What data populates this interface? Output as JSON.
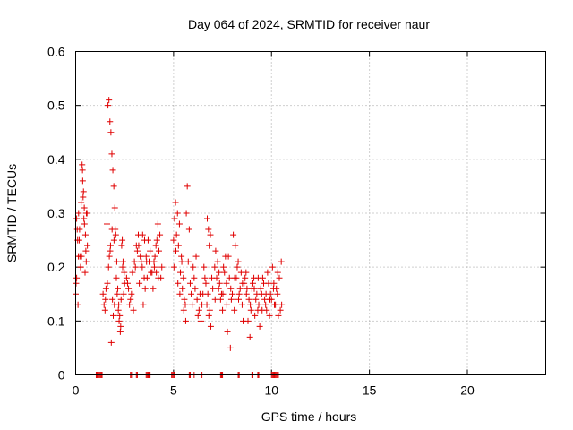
{
  "chart_data": {
    "type": "scatter",
    "title": "Day 064 of 2024, SRMTID for receiver naur",
    "xlabel": "GPS time / hours",
    "ylabel": "SRMTID / TECUs",
    "xlim": [
      0,
      24
    ],
    "ylim": [
      0,
      0.6
    ],
    "x_ticks": [
      0,
      5,
      10,
      15,
      20
    ],
    "x_tick_labels": [
      "0",
      "5",
      "10",
      "15",
      "20"
    ],
    "y_ticks": [
      0,
      0.1,
      0.2,
      0.3,
      0.4,
      0.5,
      0.6
    ],
    "y_tick_labels": [
      "0",
      "0.1",
      "0.2",
      "0.3",
      "0.4",
      "0.5",
      "0.6"
    ],
    "grid": true,
    "marker": "+",
    "color": "#e00000",
    "series": [
      {
        "name": "SRMTID",
        "x": [
          0.0,
          0.05,
          0.1,
          0.15,
          0.2,
          0.25,
          0.3,
          0.35,
          0.4,
          0.45,
          0.5,
          0.55,
          0.6,
          0.05,
          0.12,
          0.18,
          0.22,
          0.28,
          0.33,
          0.38,
          0.42,
          0.48,
          0.52,
          0.58,
          0.02,
          0.08,
          0.14,
          0.26,
          0.36,
          0.44,
          0.54,
          1.4,
          1.45,
          1.5,
          1.55,
          1.6,
          1.65,
          1.7,
          1.75,
          1.8,
          1.85,
          1.9,
          1.95,
          2.0,
          2.05,
          2.1,
          2.15,
          2.2,
          2.25,
          2.3,
          2.35,
          2.4,
          2.45,
          2.5,
          1.72,
          1.78,
          1.82,
          1.88,
          1.92,
          1.98,
          2.02,
          2.08,
          2.12,
          2.18,
          2.22,
          2.28,
          2.32,
          2.38,
          2.42,
          2.48,
          1.52,
          1.62,
          1.68,
          1.76,
          1.86,
          1.96,
          2.6,
          2.7,
          2.8,
          2.9,
          3.0,
          3.1,
          3.2,
          3.3,
          3.4,
          3.5,
          3.6,
          3.7,
          3.8,
          3.9,
          4.0,
          4.1,
          4.2,
          4.3,
          4.4,
          2.65,
          2.75,
          2.85,
          2.95,
          3.05,
          3.15,
          3.25,
          3.35,
          3.45,
          3.55,
          3.65,
          3.75,
          3.85,
          3.95,
          4.05,
          4.15,
          4.25,
          4.35,
          3.22,
          3.32,
          3.42,
          3.52,
          3.62,
          4.02,
          4.12,
          4.22,
          5.0,
          5.1,
          5.2,
          5.3,
          5.4,
          5.5,
          5.6,
          5.7,
          5.8,
          5.9,
          6.0,
          6.1,
          6.2,
          6.3,
          6.4,
          6.5,
          6.6,
          6.7,
          6.8,
          6.9,
          7.0,
          5.05,
          5.15,
          5.25,
          5.35,
          5.45,
          5.55,
          5.65,
          5.75,
          5.85,
          5.95,
          6.05,
          6.15,
          6.25,
          6.35,
          6.45,
          6.55,
          6.65,
          6.75,
          6.85,
          6.95,
          5.02,
          5.12,
          5.22,
          5.32,
          5.42,
          5.52,
          5.62,
          6.72,
          6.78,
          6.82,
          6.88,
          7.1,
          7.2,
          7.3,
          7.4,
          7.5,
          7.6,
          7.7,
          7.8,
          7.9,
          8.0,
          8.1,
          8.2,
          8.3,
          8.4,
          8.5,
          8.6,
          8.7,
          8.8,
          8.9,
          9.0,
          9.1,
          9.2,
          9.3,
          9.4,
          9.5,
          9.6,
          9.7,
          9.8,
          9.9,
          10.0,
          10.1,
          10.2,
          10.3,
          10.4,
          10.5,
          7.15,
          7.25,
          7.35,
          7.45,
          7.55,
          7.65,
          7.75,
          7.85,
          7.95,
          8.05,
          8.15,
          8.25,
          8.35,
          8.45,
          8.55,
          8.65,
          8.75,
          8.85,
          8.95,
          9.05,
          9.15,
          9.25,
          9.35,
          9.45,
          9.55,
          9.65,
          9.75,
          9.85,
          9.95,
          10.05,
          10.15,
          10.25,
          10.35,
          10.45,
          7.12,
          7.32,
          7.52,
          7.72,
          7.92,
          8.12,
          8.32,
          8.52,
          8.72,
          8.92,
          9.12,
          9.32,
          9.52,
          9.72,
          9.92,
          10.12,
          10.32,
          10.52,
          1.05,
          1.1,
          1.15,
          1.2,
          1.25,
          1.3,
          1.35,
          2.8,
          2.85,
          3.1,
          3.15,
          3.6,
          3.65,
          3.7,
          3.75,
          3.8,
          4.9,
          4.95,
          5.0,
          5.05,
          5.8,
          5.85,
          6.05,
          6.4,
          6.45,
          7.4,
          7.45,
          7.5,
          8.3,
          8.35,
          9.0,
          9.05,
          9.3,
          9.35,
          10.0,
          10.05,
          10.1,
          10.15,
          10.2,
          10.25,
          10.3,
          10.35
        ],
        "y": [
          0.15,
          0.29,
          0.25,
          0.3,
          0.27,
          0.2,
          0.22,
          0.38,
          0.34,
          0.28,
          0.26,
          0.3,
          0.24,
          0.18,
          0.13,
          0.25,
          0.22,
          0.32,
          0.39,
          0.33,
          0.29,
          0.19,
          0.23,
          0.3,
          0.17,
          0.27,
          0.22,
          0.2,
          0.36,
          0.31,
          0.21,
          0.15,
          0.13,
          0.12,
          0.16,
          0.28,
          0.5,
          0.51,
          0.47,
          0.45,
          0.41,
          0.38,
          0.35,
          0.31,
          0.26,
          0.21,
          0.16,
          0.13,
          0.11,
          0.09,
          0.24,
          0.2,
          0.15,
          0.17,
          0.22,
          0.24,
          0.06,
          0.14,
          0.11,
          0.13,
          0.27,
          0.18,
          0.15,
          0.12,
          0.1,
          0.08,
          0.14,
          0.25,
          0.21,
          0.19,
          0.14,
          0.17,
          0.2,
          0.23,
          0.27,
          0.25,
          0.18,
          0.16,
          0.14,
          0.19,
          0.21,
          0.24,
          0.26,
          0.22,
          0.2,
          0.18,
          0.22,
          0.25,
          0.23,
          0.19,
          0.21,
          0.24,
          0.28,
          0.26,
          0.2,
          0.17,
          0.13,
          0.15,
          0.12,
          0.2,
          0.23,
          0.17,
          0.21,
          0.13,
          0.16,
          0.18,
          0.21,
          0.19,
          0.16,
          0.22,
          0.25,
          0.23,
          0.18,
          0.24,
          0.22,
          0.26,
          0.25,
          0.21,
          0.2,
          0.19,
          0.18,
          0.25,
          0.32,
          0.3,
          0.28,
          0.22,
          0.18,
          0.13,
          0.35,
          0.27,
          0.15,
          0.2,
          0.16,
          0.14,
          0.12,
          0.1,
          0.15,
          0.18,
          0.13,
          0.11,
          0.09,
          0.16,
          0.29,
          0.26,
          0.24,
          0.19,
          0.16,
          0.14,
          0.3,
          0.21,
          0.17,
          0.13,
          0.18,
          0.22,
          0.11,
          0.15,
          0.13,
          0.2,
          0.17,
          0.15,
          0.12,
          0.18,
          0.2,
          0.23,
          0.17,
          0.15,
          0.21,
          0.12,
          0.1,
          0.29,
          0.27,
          0.24,
          0.26,
          0.2,
          0.18,
          0.16,
          0.14,
          0.12,
          0.19,
          0.17,
          0.22,
          0.05,
          0.15,
          0.12,
          0.18,
          0.21,
          0.16,
          0.13,
          0.17,
          0.19,
          0.1,
          0.07,
          0.16,
          0.18,
          0.14,
          0.12,
          0.09,
          0.15,
          0.17,
          0.13,
          0.19,
          0.11,
          0.14,
          0.16,
          0.13,
          0.15,
          0.18,
          0.21,
          0.23,
          0.21,
          0.17,
          0.15,
          0.2,
          0.22,
          0.08,
          0.18,
          0.14,
          0.26,
          0.24,
          0.2,
          0.15,
          0.19,
          0.1,
          0.18,
          0.16,
          0.14,
          0.12,
          0.17,
          0.11,
          0.15,
          0.13,
          0.16,
          0.18,
          0.14,
          0.12,
          0.17,
          0.15,
          0.2,
          0.13,
          0.16,
          0.11,
          0.12,
          0.14,
          0.19,
          0.15,
          0.13,
          0.16,
          0.18,
          0.14,
          0.17,
          0.15,
          0.13,
          0.16,
          0.18,
          0.12,
          0.15,
          0.14,
          0.17,
          0.19,
          0.13,
          0,
          0,
          0,
          0,
          0,
          0,
          0,
          0,
          0,
          0,
          0,
          0,
          0,
          0,
          0,
          0,
          0,
          0,
          0,
          0,
          0,
          0,
          0,
          0,
          0,
          0,
          0,
          0,
          0,
          0,
          0,
          0,
          0,
          0,
          0,
          0,
          0,
          0,
          0,
          0,
          0,
          0
        ]
      }
    ]
  }
}
